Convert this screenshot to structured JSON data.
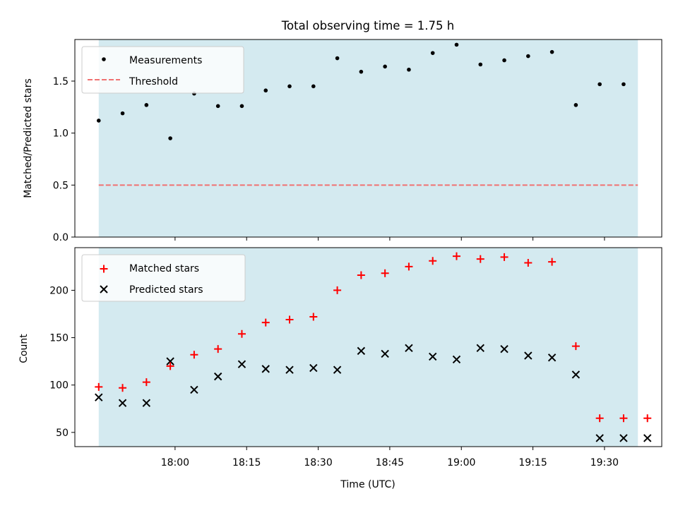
{
  "title": "Total observing time = 1.75 h",
  "colors": {
    "band": "#d4eaf0",
    "measure": "#000000",
    "threshold": "#f07272",
    "matched": "#ff0000",
    "predicted": "#000000"
  },
  "chart_data": [
    {
      "type": "scatter",
      "ylabel": "Matched/Predicted stars",
      "ylim": [
        0,
        1.9
      ],
      "yticks": [
        0.0,
        0.5,
        1.0,
        1.5
      ],
      "ytick_labels": [
        "0.0",
        "0.5",
        "1.0",
        "1.5"
      ],
      "xlim": [
        "17:39",
        "19:42"
      ],
      "xticks": [
        "18:00",
        "18:15",
        "18:30",
        "18:45",
        "19:00",
        "19:15",
        "19:30"
      ],
      "shaded_span": [
        "17:44",
        "19:37"
      ],
      "threshold": 0.5,
      "legend_position": "top-left",
      "series": [
        {
          "name": "Measurements",
          "x": [
            "17:44",
            "17:49",
            "17:54",
            "17:59",
            "18:04",
            "18:09",
            "18:14",
            "18:19",
            "18:24",
            "18:29",
            "18:34",
            "18:39",
            "18:44",
            "18:49",
            "18:54",
            "18:59",
            "19:04",
            "19:09",
            "19:14",
            "19:19",
            "19:24",
            "19:29",
            "19:34"
          ],
          "y": [
            1.12,
            1.19,
            1.27,
            0.95,
            1.38,
            1.26,
            1.26,
            1.41,
            1.45,
            1.45,
            1.72,
            1.59,
            1.64,
            1.61,
            1.77,
            1.85,
            1.66,
            1.7,
            1.74,
            1.78,
            1.27,
            1.47,
            1.47
          ]
        },
        {
          "name": "Threshold",
          "x": [
            "17:44",
            "19:37"
          ],
          "y": [
            0.5,
            0.5
          ]
        }
      ]
    },
    {
      "type": "scatter",
      "xlabel": "Time (UTC)",
      "ylabel": "Count",
      "ylim": [
        35,
        245
      ],
      "yticks": [
        50,
        100,
        150,
        200
      ],
      "ytick_labels": [
        "50",
        "100",
        "150",
        "200"
      ],
      "xlim": [
        "17:39",
        "19:42"
      ],
      "xticks": [
        "18:00",
        "18:15",
        "18:30",
        "18:45",
        "19:00",
        "19:15",
        "19:30"
      ],
      "shaded_span": [
        "17:44",
        "19:37"
      ],
      "legend_position": "top-left",
      "series": [
        {
          "name": "Matched stars",
          "x": [
            "17:44",
            "17:49",
            "17:54",
            "17:59",
            "18:04",
            "18:09",
            "18:14",
            "18:19",
            "18:24",
            "18:29",
            "18:34",
            "18:39",
            "18:44",
            "18:49",
            "18:54",
            "18:59",
            "19:04",
            "19:09",
            "19:14",
            "19:19",
            "19:24",
            "19:29",
            "19:34",
            "19:39"
          ],
          "y": [
            98,
            97,
            103,
            120,
            132,
            138,
            154,
            166,
            169,
            172,
            200,
            216,
            218,
            225,
            231,
            236,
            233,
            235,
            229,
            230,
            141,
            65,
            65,
            65
          ]
        },
        {
          "name": "Predicted stars",
          "x": [
            "17:44",
            "17:49",
            "17:54",
            "17:59",
            "18:04",
            "18:09",
            "18:14",
            "18:19",
            "18:24",
            "18:29",
            "18:34",
            "18:39",
            "18:44",
            "18:49",
            "18:54",
            "18:59",
            "19:04",
            "19:09",
            "19:14",
            "19:19",
            "19:24",
            "19:29",
            "19:34",
            "19:39"
          ],
          "y": [
            87,
            81,
            81,
            125,
            95,
            109,
            122,
            117,
            116,
            118,
            116,
            136,
            133,
            139,
            130,
            127,
            139,
            138,
            131,
            129,
            111,
            44,
            44,
            44
          ]
        }
      ]
    }
  ]
}
